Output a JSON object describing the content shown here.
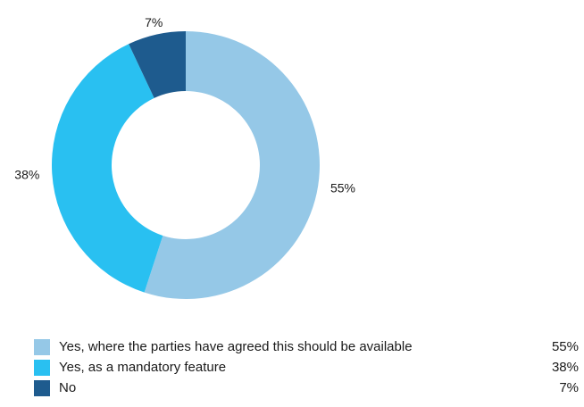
{
  "chart_data": {
    "type": "pie",
    "donut": true,
    "slices": [
      {
        "label": "Yes, where the parties have agreed this should be available",
        "value": 55,
        "display": "55%",
        "color": "#95c8e7"
      },
      {
        "label": "Yes, as a mandatory feature",
        "value": 38,
        "display": "38%",
        "color": "#29c0f1"
      },
      {
        "label": "No",
        "value": 7,
        "display": "7%",
        "color": "#1e5b8e"
      }
    ],
    "legend_placement": "bottom"
  }
}
